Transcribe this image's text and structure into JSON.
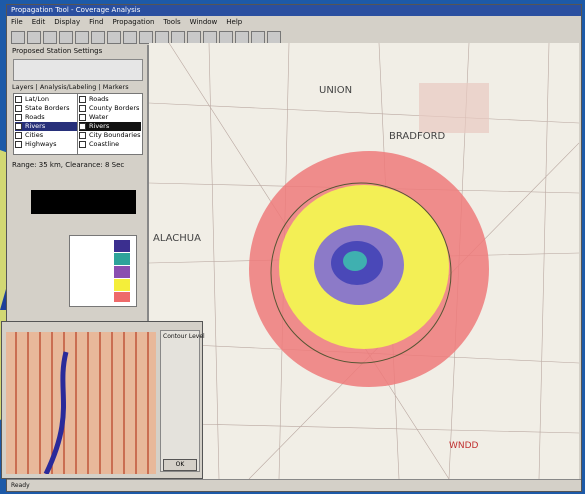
{
  "window": {
    "title": "Propagation Tool - Coverage Analysis",
    "menu": [
      "File",
      "Edit",
      "Display",
      "Find",
      "Propagation",
      "Tools",
      "Window",
      "Help"
    ],
    "status": "Ready"
  },
  "panel": {
    "title": "Proposed Station Settings",
    "tabs": [
      "Layers",
      "Analysis/Labeling",
      "Markers"
    ],
    "layers": [
      "Lat/Lon",
      "State Borders",
      "Roads",
      "Rivers",
      "Cities",
      "Highways",
      "Roads",
      "County Borders",
      "Water",
      "Rivers",
      "City Boundaries",
      "Coastline"
    ],
    "range": "Range: 35 km, Clearance: 8 Sec"
  },
  "map": {
    "labels": [
      "UNION",
      "BRADFORD",
      "ALACHUA",
      "WNDD"
    ]
  },
  "dialog": {
    "title": "Contour Level",
    "ok": "OK"
  }
}
